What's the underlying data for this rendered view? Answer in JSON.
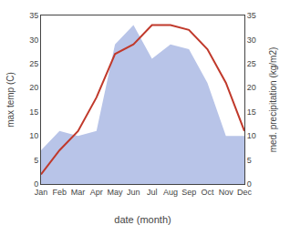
{
  "chart_data": {
    "type": "line",
    "categories": [
      "Jan",
      "Feb",
      "Mar",
      "Apr",
      "May",
      "Jun",
      "Jul",
      "Aug",
      "Sep",
      "Oct",
      "Nov",
      "Dec"
    ],
    "xlabel": "date (month)",
    "ylabel": "max temp (C)",
    "y2label": "med. precipitation (kg/m2)",
    "series": [
      {
        "type": "area",
        "color": "#b8c4e8",
        "axis": "y2",
        "values": [
          7,
          11,
          10,
          11,
          29,
          33,
          26,
          29,
          28,
          21,
          10,
          10
        ]
      },
      {
        "type": "line",
        "color": "#c0392b",
        "values": [
          2,
          7,
          11,
          18,
          27,
          29,
          33,
          33,
          32,
          28,
          21,
          11
        ]
      }
    ],
    "ylim": [
      0,
      35
    ],
    "yticks": [
      0,
      5,
      10,
      15,
      20,
      25,
      30,
      35
    ],
    "y2lim": [
      0,
      35
    ],
    "y2ticks": [
      0,
      5,
      10,
      15,
      20,
      25,
      30,
      35
    ],
    "grid": false
  }
}
